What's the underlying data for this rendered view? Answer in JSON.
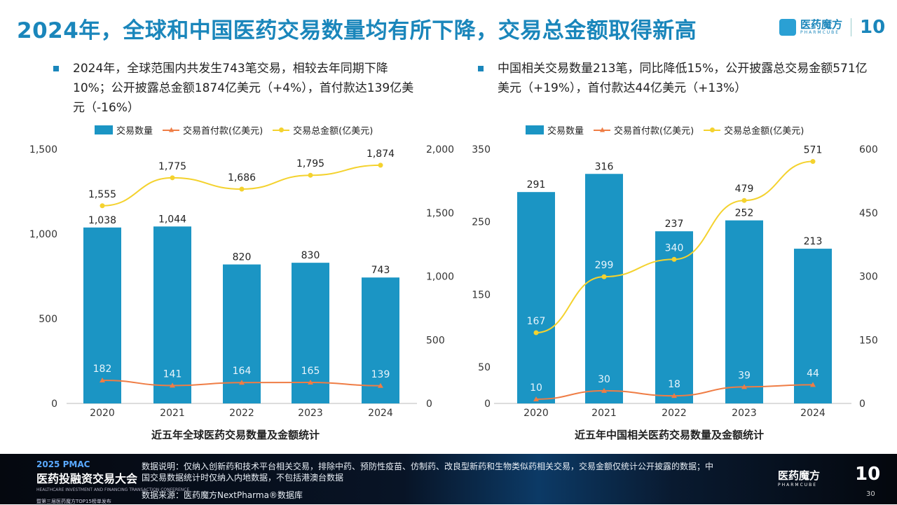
{
  "header": {
    "title": "2024年，全球和中国医药交易数量均有所下降，交易总金额取得新高",
    "logo_cn": "医药魔方",
    "logo_en": "PHARMCUBE",
    "logo_badge": "10"
  },
  "bullets": {
    "left": "2024年，全球范围内共发生743笔交易，相较去年同期下降10%；公开披露总金额1874亿美元（+4%），首付款达139亿美元（-16%）",
    "right": "中国相关交易数量213笔，同比降低15%，公开披露总交易金额571亿美元（+19%），首付款达44亿美元（+13%）"
  },
  "colors": {
    "bar": "#1b95c4",
    "upfront": "#ef7d45",
    "total": "#f4d22e",
    "title": "#1a86bb"
  },
  "chart_data": [
    {
      "type": "bar+line",
      "title": "近五年全球医药交易数量及金额统计",
      "categories": [
        "2020",
        "2021",
        "2022",
        "2023",
        "2024"
      ],
      "left_axis": {
        "range": [
          0,
          1500
        ],
        "ticks": [
          0,
          500,
          1000,
          1500
        ],
        "tick_labels": [
          "0",
          "500",
          "1,000",
          "1,500"
        ]
      },
      "right_axis": {
        "range": [
          0,
          2000
        ],
        "ticks": [
          0,
          500,
          1000,
          1500,
          2000
        ],
        "tick_labels": [
          "0",
          "500",
          "1,000",
          "1,500",
          "2,000"
        ]
      },
      "legend_position": "top",
      "grid": false,
      "series": [
        {
          "name": "交易数量",
          "type": "bar",
          "axis": "left",
          "values": [
            1038,
            1044,
            820,
            830,
            743
          ],
          "labels": [
            "1,038",
            "1,044",
            "820",
            "830",
            "743"
          ]
        },
        {
          "name": "交易首付款(亿美元)",
          "type": "line",
          "axis": "right",
          "values": [
            182,
            141,
            164,
            165,
            139
          ],
          "labels": [
            "182",
            "141",
            "164",
            "165",
            "139"
          ]
        },
        {
          "name": "交易总金额(亿美元)",
          "type": "line",
          "axis": "right",
          "values": [
            1555,
            1775,
            1686,
            1795,
            1874
          ],
          "labels": [
            "1,555",
            "1,775",
            "1,686",
            "1,795",
            "1,874"
          ]
        }
      ]
    },
    {
      "type": "bar+line",
      "title": "近五年中国相关医药交易数量及金额统计",
      "categories": [
        "2020",
        "2021",
        "2022",
        "2023",
        "2024"
      ],
      "left_axis": {
        "range": [
          0,
          350
        ],
        "ticks": [
          0,
          50,
          150,
          250,
          350
        ],
        "tick_labels": [
          "0",
          "50",
          "150",
          "250",
          "350"
        ]
      },
      "right_axis": {
        "range": [
          0,
          600
        ],
        "ticks": [
          0,
          150,
          300,
          450,
          600
        ],
        "tick_labels": [
          "0",
          "150",
          "300",
          "450",
          "600"
        ]
      },
      "legend_position": "top",
      "grid": false,
      "series": [
        {
          "name": "交易数量",
          "type": "bar",
          "axis": "left",
          "values": [
            291,
            316,
            237,
            252,
            213
          ],
          "labels": [
            "291",
            "316",
            "237",
            "252",
            "213"
          ]
        },
        {
          "name": "交易首付款(亿美元)",
          "type": "line",
          "axis": "right",
          "values": [
            10,
            30,
            18,
            39,
            44
          ],
          "labels": [
            "10",
            "30",
            "18",
            "39",
            "44"
          ]
        },
        {
          "name": "交易总金额(亿美元)",
          "type": "line",
          "axis": "right",
          "values": [
            167,
            299,
            340,
            479,
            571
          ],
          "labels": [
            "167",
            "299",
            "340",
            "479",
            "571"
          ]
        }
      ]
    }
  ],
  "footer": {
    "conf_year": "2025 PMAC",
    "conf_name": "医药投融资交易大会",
    "conf_sub": "HEALTHCARE INVESTMENT AND FINANCING TRANSACTION CONFERENCE",
    "conf_tag": "暨第三届医药魔方TOP15榜单发布",
    "note": "数据说明：仅纳入创新药和技术平台相关交易，排除中药、预防性疫苗、仿制药、改良型新药和生物类似药相关交易，交易金额仅统计公开披露的数据；中国交易数据统计时仅纳入内地数据，不包括港澳台数据",
    "source": "数据来源：医药魔方NextPharma®数据库",
    "logo_cn": "医药魔方",
    "logo_en": "PHARMCUBE",
    "badge": "10",
    "page": "30"
  }
}
